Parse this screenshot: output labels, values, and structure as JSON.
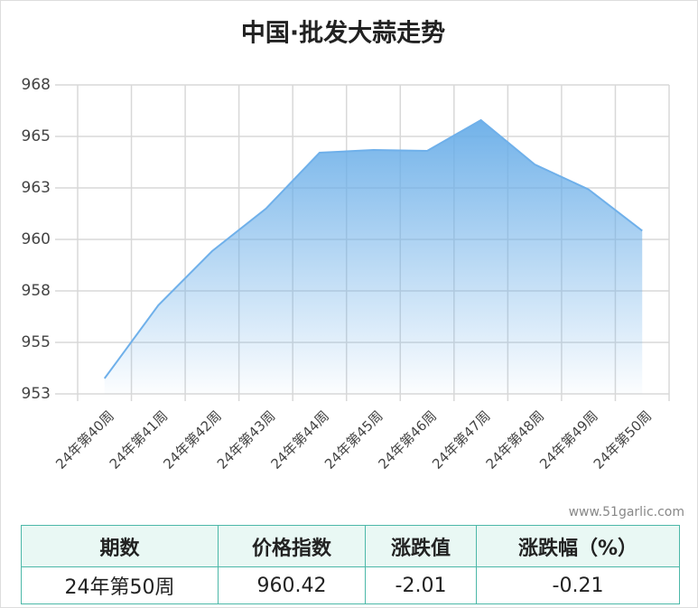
{
  "chart_data": {
    "type": "area",
    "title": "中国·批发大蒜走势",
    "categories": [
      "24年第40周",
      "24年第41周",
      "24年第42周",
      "24年第43周",
      "24年第44周",
      "24年第45周",
      "24年第46周",
      "24年第47周",
      "24年第48周",
      "24年第49周",
      "24年第50周"
    ],
    "values": [
      953.25,
      956.8,
      959.43,
      961.49,
      964.21,
      964.34,
      964.3,
      965.79,
      963.64,
      962.43,
      960.42
    ],
    "color": "#6fb0ea",
    "ylim": [
      952.5,
      967.5
    ],
    "yticks": [
      {
        "value": 952.5,
        "label": "953"
      },
      {
        "value": 955,
        "label": "955"
      },
      {
        "value": 957.5,
        "label": "958"
      },
      {
        "value": 960,
        "label": "960"
      },
      {
        "value": 962.5,
        "label": "963"
      },
      {
        "value": 965,
        "label": "965"
      },
      {
        "value": 967.5,
        "label": "968"
      }
    ],
    "grid": true
  },
  "watermark": "www.51garlic.com",
  "table": {
    "header": [
      "期数",
      "价格指数",
      "涨跌值",
      "涨跌幅（%）"
    ],
    "rows": [
      [
        "24年第50周",
        "960.42",
        "-2.01",
        "-0.21"
      ]
    ]
  }
}
